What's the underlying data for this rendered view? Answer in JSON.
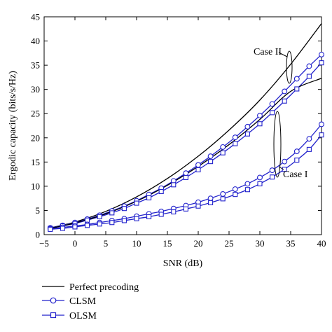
{
  "chart_data": {
    "type": "line",
    "xlabel": "SNR (dB)",
    "ylabel": "Ergodic capacity (bits/s/Hz)",
    "xlim": [
      -5,
      40
    ],
    "ylim": [
      0,
      45
    ],
    "xticks": [
      -5,
      0,
      5,
      10,
      15,
      20,
      25,
      30,
      35,
      40
    ],
    "xtick_labels": [
      "−5",
      "0",
      "5",
      "10",
      "15",
      "20",
      "25",
      "30",
      "35",
      "40"
    ],
    "yticks": [
      0,
      5,
      10,
      15,
      20,
      25,
      30,
      35,
      40,
      45
    ],
    "ytick_labels": [
      "0",
      "5",
      "10",
      "15",
      "20",
      "25",
      "30",
      "35",
      "40",
      "45"
    ],
    "grid": false,
    "legend_position": "below",
    "legend": [
      "Perfect precoding",
      "CLSM",
      "OLSM"
    ],
    "annotations": [
      "Case II",
      "Case I"
    ],
    "colors": {
      "perfect": "#000000",
      "clsm": "#2222cc",
      "olsm": "#2222cc"
    },
    "series": [
      {
        "name": "Perfect precoding",
        "group": "Case II",
        "marker": "none",
        "x": [
          -4,
          0,
          5,
          10,
          15,
          20,
          25,
          30,
          35,
          40
        ],
        "y": [
          1.4,
          2.6,
          4.8,
          7.8,
          11.6,
          16.2,
          21.6,
          27.8,
          35.2,
          43.6
        ]
      },
      {
        "name": "CLSM",
        "group": "Case II",
        "marker": "circle",
        "x": [
          -4,
          -2,
          0,
          2,
          4,
          6,
          8,
          10,
          12,
          14,
          16,
          18,
          20,
          22,
          24,
          26,
          28,
          30,
          32,
          34,
          36,
          38,
          40
        ],
        "y": [
          1.4,
          1.9,
          2.5,
          3.2,
          4.0,
          4.9,
          5.9,
          7.0,
          8.3,
          9.6,
          11.1,
          12.7,
          14.4,
          16.2,
          18.1,
          20.1,
          22.3,
          24.6,
          27.0,
          29.6,
          32.2,
          34.8,
          37.2
        ]
      },
      {
        "name": "OLSM",
        "group": "Case II",
        "marker": "square",
        "x": [
          -4,
          -2,
          0,
          2,
          4,
          6,
          8,
          10,
          12,
          14,
          16,
          18,
          20,
          22,
          24,
          26,
          28,
          30,
          32,
          34,
          36,
          38,
          40
        ],
        "y": [
          1.3,
          1.8,
          2.3,
          3.0,
          3.7,
          4.5,
          5.4,
          6.5,
          7.6,
          8.9,
          10.3,
          11.8,
          13.4,
          15.1,
          16.9,
          18.8,
          20.8,
          22.9,
          25.2,
          27.6,
          30.1,
          32.7,
          35.5
        ]
      },
      {
        "name": "Perfect precoding",
        "group": "Case I",
        "marker": "none",
        "x": [
          -4,
          0,
          5,
          10,
          15,
          20,
          25,
          30,
          35,
          40
        ],
        "y": [
          1.3,
          2.4,
          4.3,
          6.9,
          10.2,
          14.1,
          18.6,
          23.8,
          29.6,
          32.3
        ]
      },
      {
        "name": "CLSM",
        "group": "Case I",
        "marker": "circle",
        "x": [
          -4,
          -2,
          0,
          2,
          4,
          6,
          8,
          10,
          12,
          14,
          16,
          18,
          20,
          22,
          24,
          26,
          28,
          30,
          32,
          34,
          36,
          38,
          40
        ],
        "y": [
          1.2,
          1.5,
          1.8,
          2.1,
          2.5,
          2.9,
          3.3,
          3.8,
          4.3,
          4.8,
          5.4,
          6.0,
          6.7,
          7.5,
          8.4,
          9.4,
          10.5,
          11.8,
          13.3,
          15.1,
          17.2,
          19.8,
          22.8
        ]
      },
      {
        "name": "OLSM",
        "group": "Case I",
        "marker": "square",
        "x": [
          -4,
          -2,
          0,
          2,
          4,
          6,
          8,
          10,
          12,
          14,
          16,
          18,
          20,
          22,
          24,
          26,
          28,
          30,
          32,
          34,
          36,
          38,
          40
        ],
        "y": [
          1.1,
          1.3,
          1.6,
          1.9,
          2.2,
          2.5,
          2.9,
          3.3,
          3.7,
          4.2,
          4.7,
          5.3,
          5.9,
          6.6,
          7.4,
          8.3,
          9.3,
          10.5,
          11.9,
          13.5,
          15.4,
          17.6,
          20.6
        ]
      }
    ]
  }
}
